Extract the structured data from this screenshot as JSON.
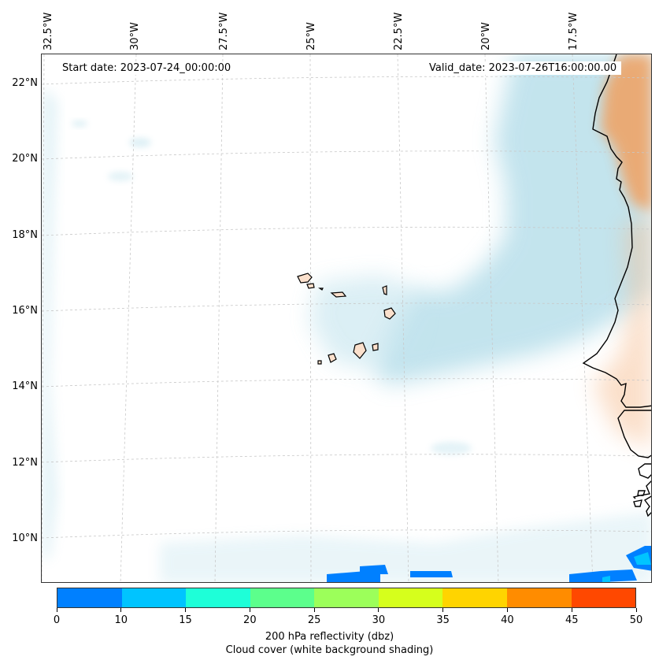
{
  "map": {
    "start_date": "Start date: 2023-07-24_00:00:00",
    "valid_date": "Valid_date: 2023-07-26T16:00:00.00",
    "lon_labels": [
      "32.5°W",
      "30°W",
      "27.5°W",
      "25°W",
      "22.5°W",
      "20°W",
      "17.5°W"
    ],
    "lat_labels": [
      "22°N",
      "20°N",
      "18°N",
      "16°N",
      "14°N",
      "12°N",
      "10°N"
    ],
    "colors": {
      "cloud": "#a9d8e6",
      "dust": "#f0a060",
      "coast": "#000000",
      "island_fill": "#fbe0cc"
    }
  },
  "colorbar": {
    "ticks": [
      "0",
      "10",
      "15",
      "20",
      "25",
      "30",
      "35",
      "40",
      "45",
      "50"
    ],
    "colors": [
      "#0080ff",
      "#00c4ff",
      "#1effd8",
      "#5cff8c",
      "#9cff5a",
      "#d6ff1c",
      "#ffd400",
      "#ff8c00",
      "#ff4800"
    ],
    "label1": "200 hPa reflectivity (dbz)",
    "label2": "Cloud cover (white background shading)"
  }
}
